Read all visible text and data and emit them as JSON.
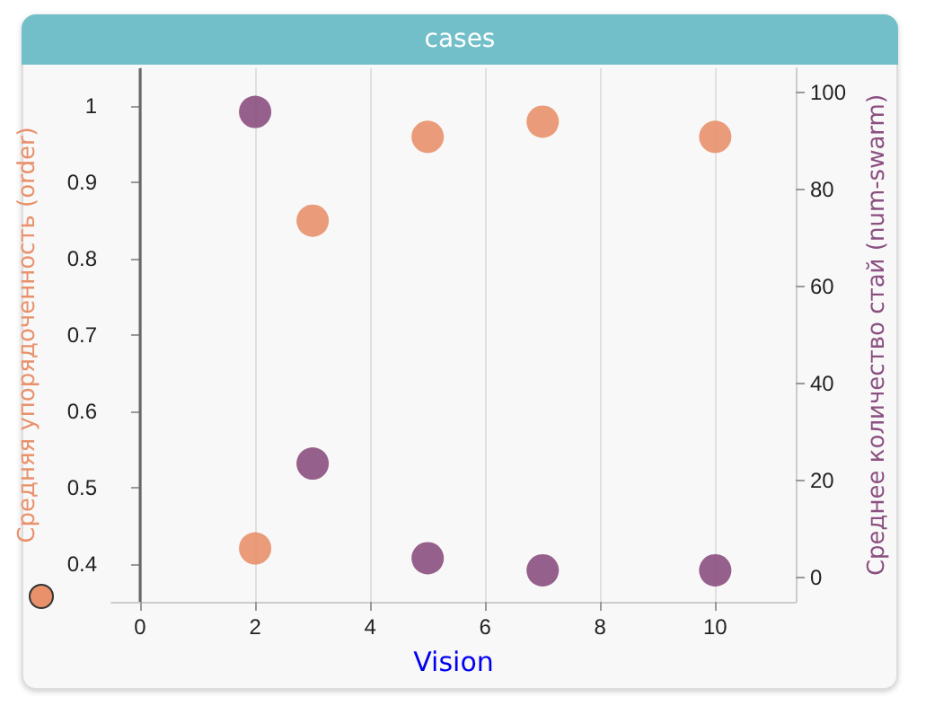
{
  "chart_data": {
    "type": "scatter",
    "title": "cases",
    "xlabel": "Vision",
    "ylabel": "Средняя упорядоченность (order)",
    "y2label": "Среднее количество стай (num-swarm)",
    "x": [
      2,
      3,
      5,
      7,
      10
    ],
    "series": [
      {
        "color": "#e8916b",
        "values": [
          0.42,
          0.85,
          0.96,
          0.98,
          0.96
        ]
      },
      {
        "color": "#8b4f80",
        "axis": "y2",
        "values": [
          96,
          23.5,
          4,
          1.5,
          1.5
        ]
      }
    ],
    "xlim": [
      -0.5,
      11.4
    ],
    "xticks": [
      0,
      2,
      4,
      6,
      8,
      10
    ],
    "ylim": [
      0.35,
      1.05
    ],
    "yticks": [
      0.4,
      0.5,
      0.6,
      0.7,
      0.8,
      0.9,
      1
    ],
    "y2lim": [
      -5,
      105
    ],
    "y2ticks": [
      0,
      20,
      40,
      60,
      80,
      100
    ],
    "ref_lines": [
      {
        "axis": "x",
        "value": 0,
        "color": "#666666"
      }
    ],
    "grid": "x",
    "marker": "circle"
  }
}
